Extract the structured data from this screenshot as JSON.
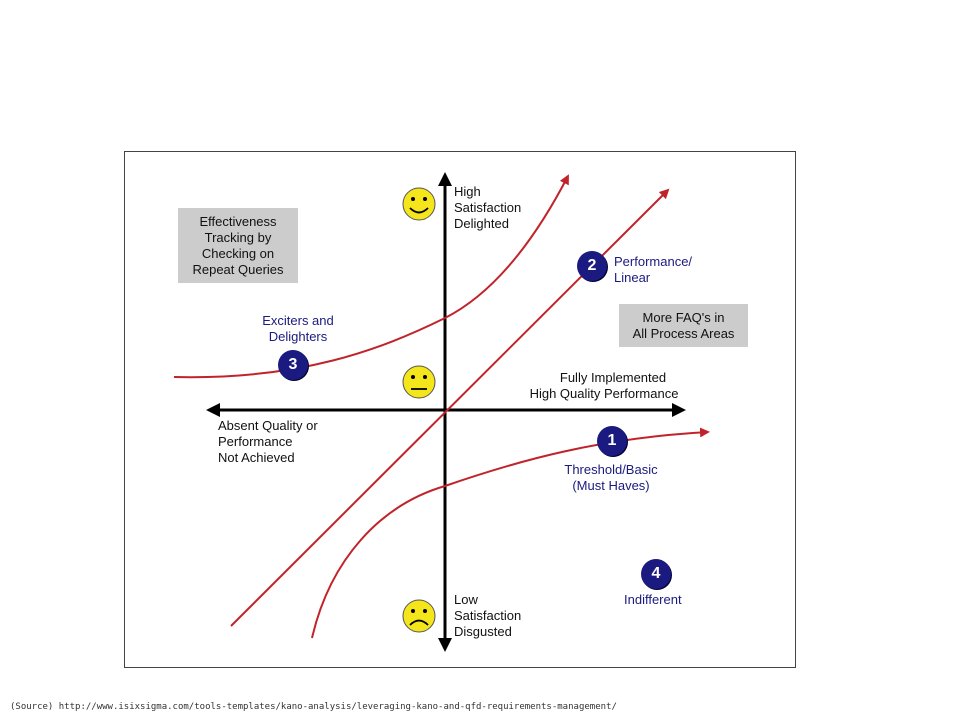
{
  "axes": {
    "y_top": [
      "High",
      "Satisfaction",
      "Delighted"
    ],
    "y_bottom": [
      "Low",
      "Satisfaction",
      "Disgusted"
    ],
    "x_right": [
      "Fully Implemented",
      "High Quality Performance"
    ],
    "x_left": [
      "Absent Quality or",
      "Performance",
      "Not Achieved"
    ]
  },
  "curves": [
    {
      "number": "1",
      "label": [
        "Threshold/Basic",
        "(Must Haves)"
      ]
    },
    {
      "number": "2",
      "label": [
        "Performance/",
        "Linear"
      ]
    },
    {
      "number": "3",
      "label": [
        "Exciters and",
        "Delighters"
      ]
    },
    {
      "number": "4",
      "label": [
        "Indifferent"
      ]
    }
  ],
  "notes": {
    "effectiveness": [
      "Effectiveness",
      "Tracking by",
      "Checking on",
      "Repeat Queries"
    ],
    "faq": [
      "More FAQ's in",
      "All Process Areas"
    ]
  },
  "source": "(Source) http://www.isixsigma.com/tools-templates/kano-analysis/leveraging-kano-and-qfd-requirements-management/",
  "colors": {
    "curve": "#c0242a",
    "badge": "#1a1a80",
    "smiley": "#f5e61c",
    "note_box": "#cccccc"
  }
}
